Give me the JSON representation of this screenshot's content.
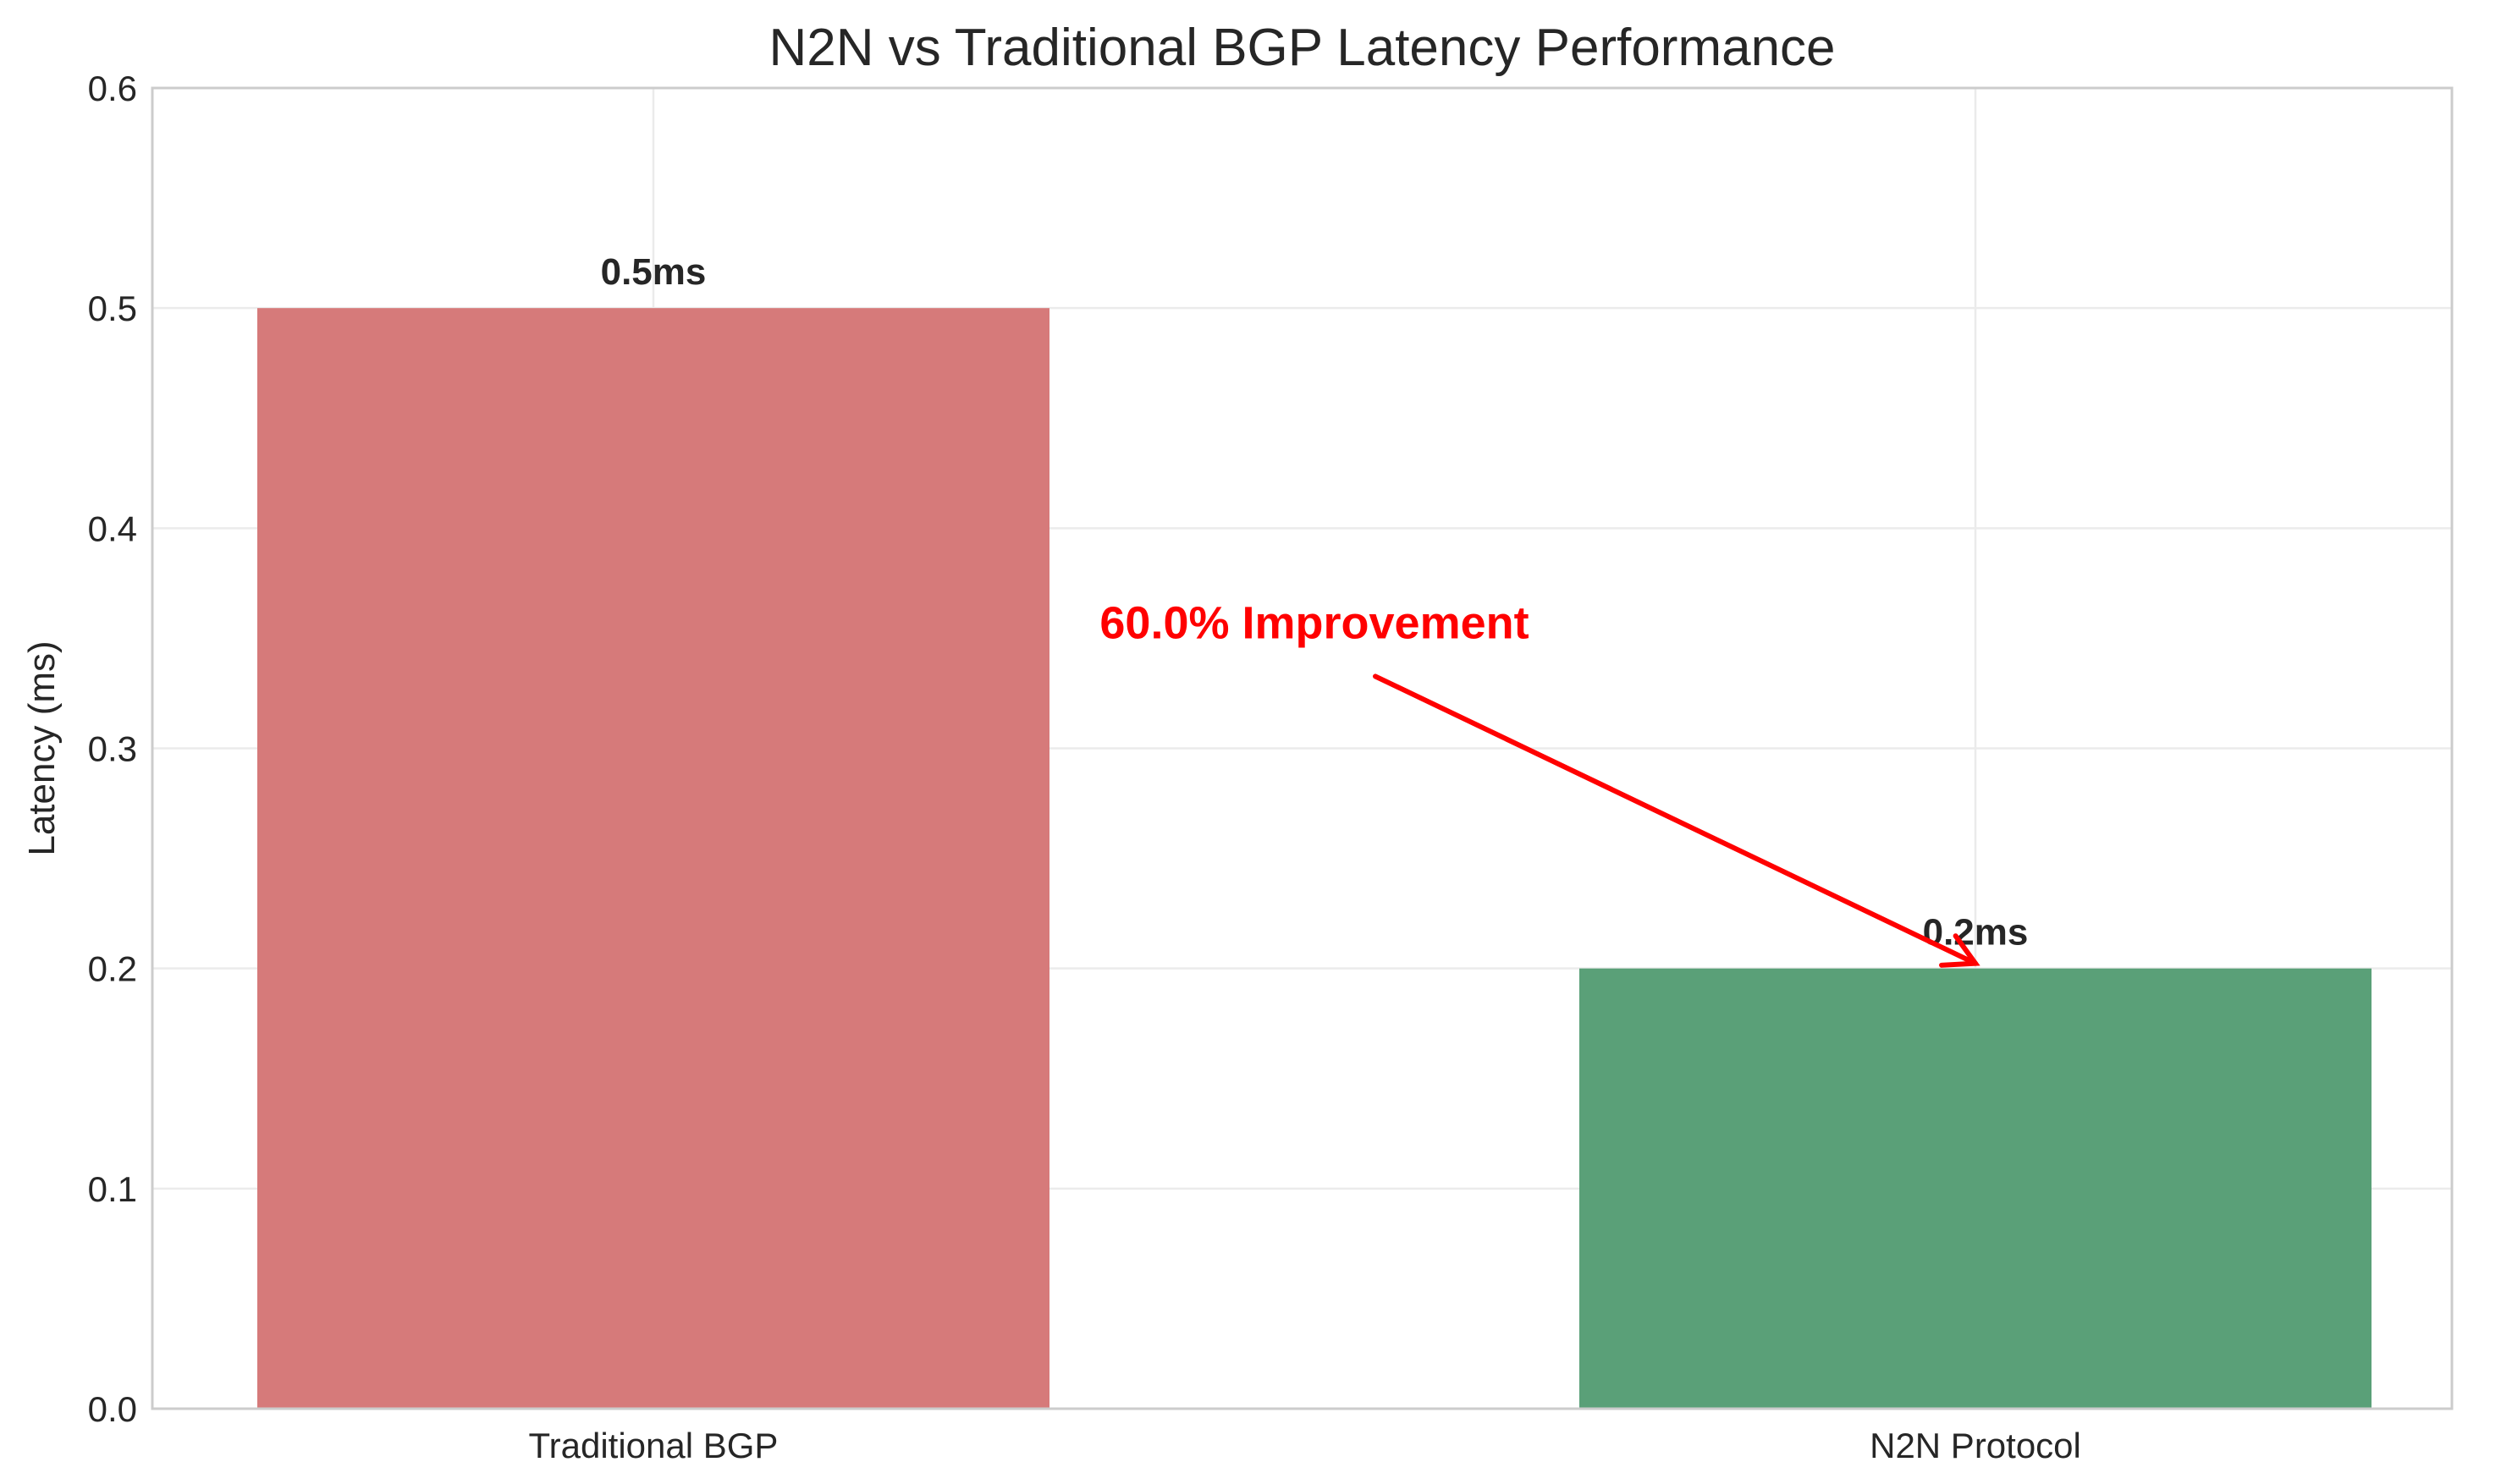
{
  "chart_data": {
    "type": "bar",
    "title": "N2N vs Traditional BGP Latency Performance",
    "xlabel": "",
    "ylabel": "Latency (ms)",
    "ylim": [
      0,
      0.6
    ],
    "yticks": [
      0.0,
      0.1,
      0.2,
      0.3,
      0.4,
      0.5,
      0.6
    ],
    "ytick_labels": [
      "0.0",
      "0.1",
      "0.2",
      "0.3",
      "0.4",
      "0.5",
      "0.6"
    ],
    "categories": [
      "Traditional BGP",
      "N2N Protocol"
    ],
    "values": [
      0.5,
      0.2
    ],
    "bar_labels": [
      "0.5ms",
      "0.2ms"
    ],
    "colors": [
      "#d67a7a",
      "#5aa078"
    ],
    "grid": true,
    "annotation": {
      "text": "60.0% Improvement",
      "color": "#ff0000",
      "text_category_position": 0.5,
      "text_value": 0.35,
      "arrow_target_category": 1,
      "arrow_target_value": 0.2
    }
  }
}
